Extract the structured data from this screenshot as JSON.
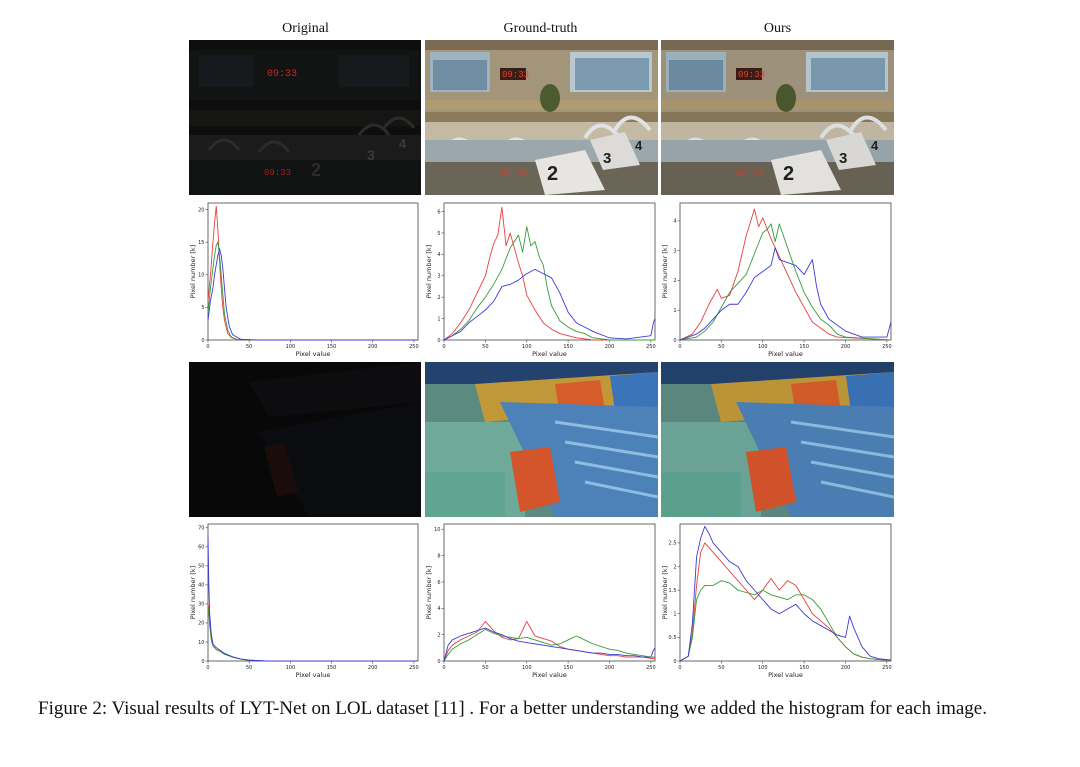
{
  "columns": [
    "Original",
    "Ground-truth",
    "Ours"
  ],
  "photos": {
    "scoreboard_digits": "09:33",
    "lane_numbers": [
      "2",
      "3",
      "4"
    ]
  },
  "caption": "Figure 2: Visual results of LYT-Net on LOL dataset [11] . For a better understanding we added the histogram for each image.",
  "chart_data": [
    {
      "type": "line",
      "id": "r1c1",
      "xlabel": "Pixel value",
      "ylabel": "Pixel number [k]",
      "xlim": [
        0,
        255
      ],
      "ylim": [
        0,
        21
      ],
      "xticks": [
        0,
        50,
        100,
        150,
        200,
        250
      ],
      "yticks": [
        0,
        5,
        10,
        15,
        20
      ],
      "grid": false,
      "series": [
        {
          "color": "#e8403f",
          "x": [
            0,
            3,
            6,
            8,
            10,
            12,
            14,
            16,
            18,
            20,
            24,
            28,
            35,
            60,
            255
          ],
          "y": [
            6,
            10,
            15,
            18,
            20.5,
            17,
            12,
            8,
            5,
            3,
            1,
            0.4,
            0.1,
            0,
            0
          ]
        },
        {
          "color": "#3a9a3a",
          "x": [
            0,
            3,
            6,
            8,
            10,
            12,
            14,
            16,
            18,
            20,
            24,
            28,
            35,
            60,
            255
          ],
          "y": [
            4,
            8,
            11,
            13,
            14.5,
            15,
            13,
            10,
            7,
            4,
            1.5,
            0.5,
            0.1,
            0,
            0
          ]
        },
        {
          "color": "#3b3bd6",
          "x": [
            0,
            3,
            6,
            8,
            10,
            12,
            14,
            16,
            18,
            20,
            22,
            26,
            30,
            40,
            60,
            255
          ],
          "y": [
            3,
            6,
            8,
            10,
            11.5,
            13,
            14,
            13,
            11,
            8,
            5,
            2,
            0.8,
            0.1,
            0,
            0
          ]
        }
      ]
    },
    {
      "type": "line",
      "id": "r1c2",
      "xlabel": "Pixel value",
      "ylabel": "Pixel number [k]",
      "xlim": [
        0,
        255
      ],
      "ylim": [
        0,
        6.4
      ],
      "xticks": [
        0,
        50,
        100,
        150,
        200,
        250
      ],
      "yticks": [
        0,
        1,
        2,
        3,
        4,
        5,
        6
      ],
      "grid": false,
      "series": [
        {
          "color": "#e8403f",
          "x": [
            0,
            10,
            20,
            30,
            40,
            50,
            55,
            60,
            65,
            70,
            75,
            80,
            85,
            90,
            95,
            100,
            110,
            120,
            130,
            140,
            150,
            160,
            180,
            255
          ],
          "y": [
            0,
            0.3,
            0.8,
            1.4,
            2.2,
            3,
            3.8,
            4.5,
            4.9,
            6.2,
            4.4,
            5,
            4.3,
            3.6,
            3,
            2.1,
            1.4,
            0.8,
            0.5,
            0.3,
            0.2,
            0.1,
            0,
            0
          ]
        },
        {
          "color": "#3a9a3a",
          "x": [
            0,
            10,
            20,
            30,
            40,
            50,
            60,
            70,
            80,
            90,
            95,
            100,
            105,
            110,
            115,
            120,
            125,
            130,
            140,
            150,
            160,
            170,
            180,
            200,
            255
          ],
          "y": [
            0,
            0.2,
            0.5,
            0.9,
            1.5,
            2,
            2.6,
            3.3,
            4.3,
            4.9,
            4.1,
            5.3,
            4.4,
            4.6,
            3.9,
            3.5,
            2.4,
            1.6,
            0.9,
            0.6,
            0.4,
            0.3,
            0.1,
            0,
            0
          ]
        },
        {
          "color": "#3b3bd6",
          "x": [
            0,
            10,
            20,
            30,
            40,
            50,
            60,
            70,
            80,
            90,
            100,
            110,
            120,
            130,
            140,
            150,
            160,
            170,
            180,
            200,
            220,
            250,
            253,
            255
          ],
          "y": [
            0,
            0.2,
            0.4,
            0.8,
            1.1,
            1.4,
            1.8,
            2.5,
            2.6,
            2.8,
            3.1,
            3.3,
            3.1,
            2.9,
            2.2,
            1.3,
            0.8,
            0.6,
            0.4,
            0.1,
            0.05,
            0.2,
            0.8,
            1
          ]
        }
      ]
    },
    {
      "type": "line",
      "id": "r1c3",
      "xlabel": "Pixel value",
      "ylabel": "Pixel number [k]",
      "xlim": [
        0,
        255
      ],
      "ylim": [
        0,
        4.6
      ],
      "xticks": [
        0,
        50,
        100,
        150,
        200,
        250
      ],
      "yticks": [
        0,
        1,
        2,
        3,
        4
      ],
      "grid": false,
      "series": [
        {
          "color": "#e8403f",
          "x": [
            0,
            15,
            25,
            35,
            45,
            50,
            60,
            70,
            80,
            90,
            95,
            100,
            110,
            120,
            130,
            140,
            150,
            160,
            170,
            180,
            190,
            255
          ],
          "y": [
            0,
            0.2,
            0.6,
            1.2,
            1.7,
            1.4,
            1.5,
            2.3,
            3.5,
            4.4,
            3.8,
            4.1,
            3.4,
            2.8,
            2.2,
            1.6,
            1.1,
            0.6,
            0.4,
            0.2,
            0.1,
            0
          ]
        },
        {
          "color": "#3a9a3a",
          "x": [
            0,
            20,
            30,
            40,
            50,
            60,
            70,
            80,
            90,
            100,
            105,
            110,
            115,
            120,
            130,
            140,
            150,
            160,
            170,
            180,
            190,
            200,
            255
          ],
          "y": [
            0,
            0.1,
            0.3,
            0.6,
            1.1,
            1.6,
            1.9,
            2.2,
            2.9,
            3.6,
            3.7,
            3.9,
            3.3,
            3.9,
            3.1,
            2.3,
            1.6,
            1.1,
            0.7,
            0.5,
            0.2,
            0.1,
            0
          ]
        },
        {
          "color": "#3b3bd6",
          "x": [
            0,
            20,
            30,
            40,
            50,
            60,
            70,
            80,
            90,
            100,
            110,
            115,
            120,
            130,
            140,
            150,
            160,
            165,
            170,
            180,
            190,
            200,
            210,
            220,
            250,
            253,
            255
          ],
          "y": [
            0,
            0.2,
            0.4,
            0.7,
            1,
            1.2,
            1.2,
            1.6,
            2.1,
            2.3,
            2.5,
            3.1,
            2.7,
            2.6,
            2.5,
            2.2,
            2.7,
            1.8,
            1.2,
            0.7,
            0.5,
            0.3,
            0.2,
            0.1,
            0.1,
            0.4,
            0.6
          ]
        }
      ]
    },
    {
      "type": "line",
      "id": "r2c1",
      "xlabel": "Pixel value",
      "ylabel": "Pixel number [k]",
      "xlim": [
        0,
        255
      ],
      "ylim": [
        0,
        72
      ],
      "xticks": [
        0,
        50,
        100,
        150,
        200,
        250
      ],
      "yticks": [
        0,
        10,
        20,
        30,
        40,
        50,
        60,
        70
      ],
      "grid": false,
      "series": [
        {
          "color": "#e8403f",
          "x": [
            0,
            1,
            2,
            4,
            6,
            10,
            15,
            20,
            30,
            40,
            50,
            70,
            255
          ],
          "y": [
            30,
            28,
            20,
            12,
            8,
            6,
            5,
            4,
            2,
            1,
            0.5,
            0,
            0
          ]
        },
        {
          "color": "#3a9a3a",
          "x": [
            0,
            1,
            2,
            4,
            6,
            10,
            15,
            20,
            30,
            40,
            50,
            70,
            255
          ],
          "y": [
            28,
            26,
            19,
            11,
            8,
            6,
            5,
            3.5,
            2,
            1,
            0.4,
            0,
            0
          ]
        },
        {
          "color": "#3b3bd6",
          "x": [
            0,
            1,
            2,
            4,
            6,
            10,
            15,
            20,
            30,
            40,
            50,
            70,
            255
          ],
          "y": [
            66,
            40,
            25,
            14,
            9,
            7,
            5.5,
            4,
            2.2,
            1,
            0.4,
            0,
            0
          ]
        }
      ]
    },
    {
      "type": "line",
      "id": "r2c2",
      "xlabel": "Pixel value",
      "ylabel": "Pixel number [k]",
      "xlim": [
        0,
        255
      ],
      "ylim": [
        0,
        10.4
      ],
      "xticks": [
        0,
        50,
        100,
        150,
        200,
        250
      ],
      "yticks": [
        0,
        2,
        4,
        6,
        8,
        10
      ],
      "grid": false,
      "series": [
        {
          "color": "#e8403f",
          "x": [
            0,
            5,
            10,
            20,
            30,
            40,
            50,
            60,
            70,
            80,
            90,
            100,
            110,
            120,
            130,
            140,
            150,
            160,
            170,
            180,
            190,
            200,
            210,
            220,
            230,
            240,
            250,
            255
          ],
          "y": [
            0,
            0.8,
            1.2,
            1.6,
            1.9,
            2.2,
            3,
            2.3,
            1.8,
            1.6,
            1.7,
            3,
            1.9,
            1.7,
            1.5,
            1.1,
            0.9,
            0.8,
            0.7,
            0.6,
            0.5,
            0.4,
            0.4,
            0.3,
            0.3,
            0.3,
            0.2,
            0.2
          ]
        },
        {
          "color": "#3a9a3a",
          "x": [
            0,
            5,
            10,
            20,
            30,
            40,
            50,
            60,
            70,
            80,
            90,
            100,
            110,
            120,
            130,
            140,
            150,
            160,
            170,
            180,
            190,
            200,
            210,
            220,
            230,
            240,
            250,
            255
          ],
          "y": [
            0,
            0.5,
            0.9,
            1.3,
            1.6,
            2,
            2.4,
            2.1,
            1.9,
            1.8,
            1.7,
            1.8,
            1.6,
            1.4,
            1.2,
            1.3,
            1.6,
            1.9,
            1.6,
            1.3,
            1.1,
            0.9,
            0.8,
            0.6,
            0.5,
            0.4,
            0.3,
            0.3
          ]
        },
        {
          "color": "#3b3bd6",
          "x": [
            0,
            5,
            10,
            20,
            30,
            40,
            50,
            60,
            70,
            80,
            90,
            100,
            110,
            120,
            130,
            140,
            150,
            160,
            170,
            180,
            190,
            200,
            210,
            220,
            230,
            240,
            250,
            253,
            255
          ],
          "y": [
            0,
            1.2,
            1.6,
            1.9,
            2.1,
            2.3,
            2.5,
            2.2,
            2,
            1.7,
            1.5,
            1.4,
            1.3,
            1.2,
            1.1,
            1,
            0.9,
            0.8,
            0.7,
            0.6,
            0.6,
            0.5,
            0.5,
            0.4,
            0.4,
            0.3,
            0.3,
            0.8,
            1
          ]
        }
      ]
    },
    {
      "type": "line",
      "id": "r2c3",
      "xlabel": "Pixel value",
      "ylabel": "Pixel number [k]",
      "xlim": [
        0,
        255
      ],
      "ylim": [
        0,
        2.9
      ],
      "xticks": [
        0,
        50,
        100,
        150,
        200,
        250
      ],
      "yticks": [
        0.0,
        0.5,
        1.0,
        1.5,
        2.0,
        2.5
      ],
      "grid": false,
      "series": [
        {
          "color": "#e8403f",
          "x": [
            0,
            5,
            10,
            15,
            20,
            25,
            30,
            40,
            50,
            60,
            70,
            80,
            90,
            100,
            110,
            120,
            130,
            140,
            150,
            160,
            170,
            180,
            190,
            200,
            210,
            220,
            230,
            240,
            255
          ],
          "y": [
            0,
            0.05,
            0.1,
            0.6,
            1.6,
            2.3,
            2.5,
            2.3,
            2.1,
            1.9,
            1.7,
            1.5,
            1.3,
            1.5,
            1.75,
            1.5,
            1.7,
            1.6,
            1.3,
            1.0,
            0.85,
            0.7,
            0.5,
            0.3,
            0.15,
            0.08,
            0.05,
            0.03,
            0.02
          ]
        },
        {
          "color": "#3a9a3a",
          "x": [
            0,
            5,
            10,
            15,
            20,
            25,
            30,
            40,
            50,
            60,
            70,
            80,
            90,
            100,
            110,
            120,
            130,
            140,
            150,
            160,
            170,
            180,
            190,
            200,
            210,
            220,
            230,
            240,
            255
          ],
          "y": [
            0,
            0.05,
            0.1,
            0.5,
            1.3,
            1.5,
            1.6,
            1.6,
            1.7,
            1.65,
            1.5,
            1.45,
            1.4,
            1.5,
            1.4,
            1.35,
            1.3,
            1.4,
            1.4,
            1.3,
            1.1,
            0.8,
            0.5,
            0.3,
            0.15,
            0.08,
            0.05,
            0.03,
            0.02
          ]
        },
        {
          "color": "#3b3bd6",
          "x": [
            0,
            5,
            10,
            15,
            20,
            25,
            30,
            35,
            40,
            50,
            60,
            70,
            80,
            90,
            100,
            110,
            120,
            130,
            140,
            150,
            160,
            170,
            180,
            190,
            200,
            205,
            210,
            220,
            230,
            240,
            255
          ],
          "y": [
            0,
            0.05,
            0.1,
            0.8,
            2.2,
            2.6,
            2.85,
            2.7,
            2.5,
            2.3,
            2.1,
            2.0,
            1.7,
            1.5,
            1.3,
            1.1,
            1.0,
            1.1,
            1.2,
            1.0,
            0.85,
            0.75,
            0.65,
            0.55,
            0.5,
            0.95,
            0.7,
            0.3,
            0.1,
            0.05,
            0.02
          ]
        }
      ]
    }
  ]
}
